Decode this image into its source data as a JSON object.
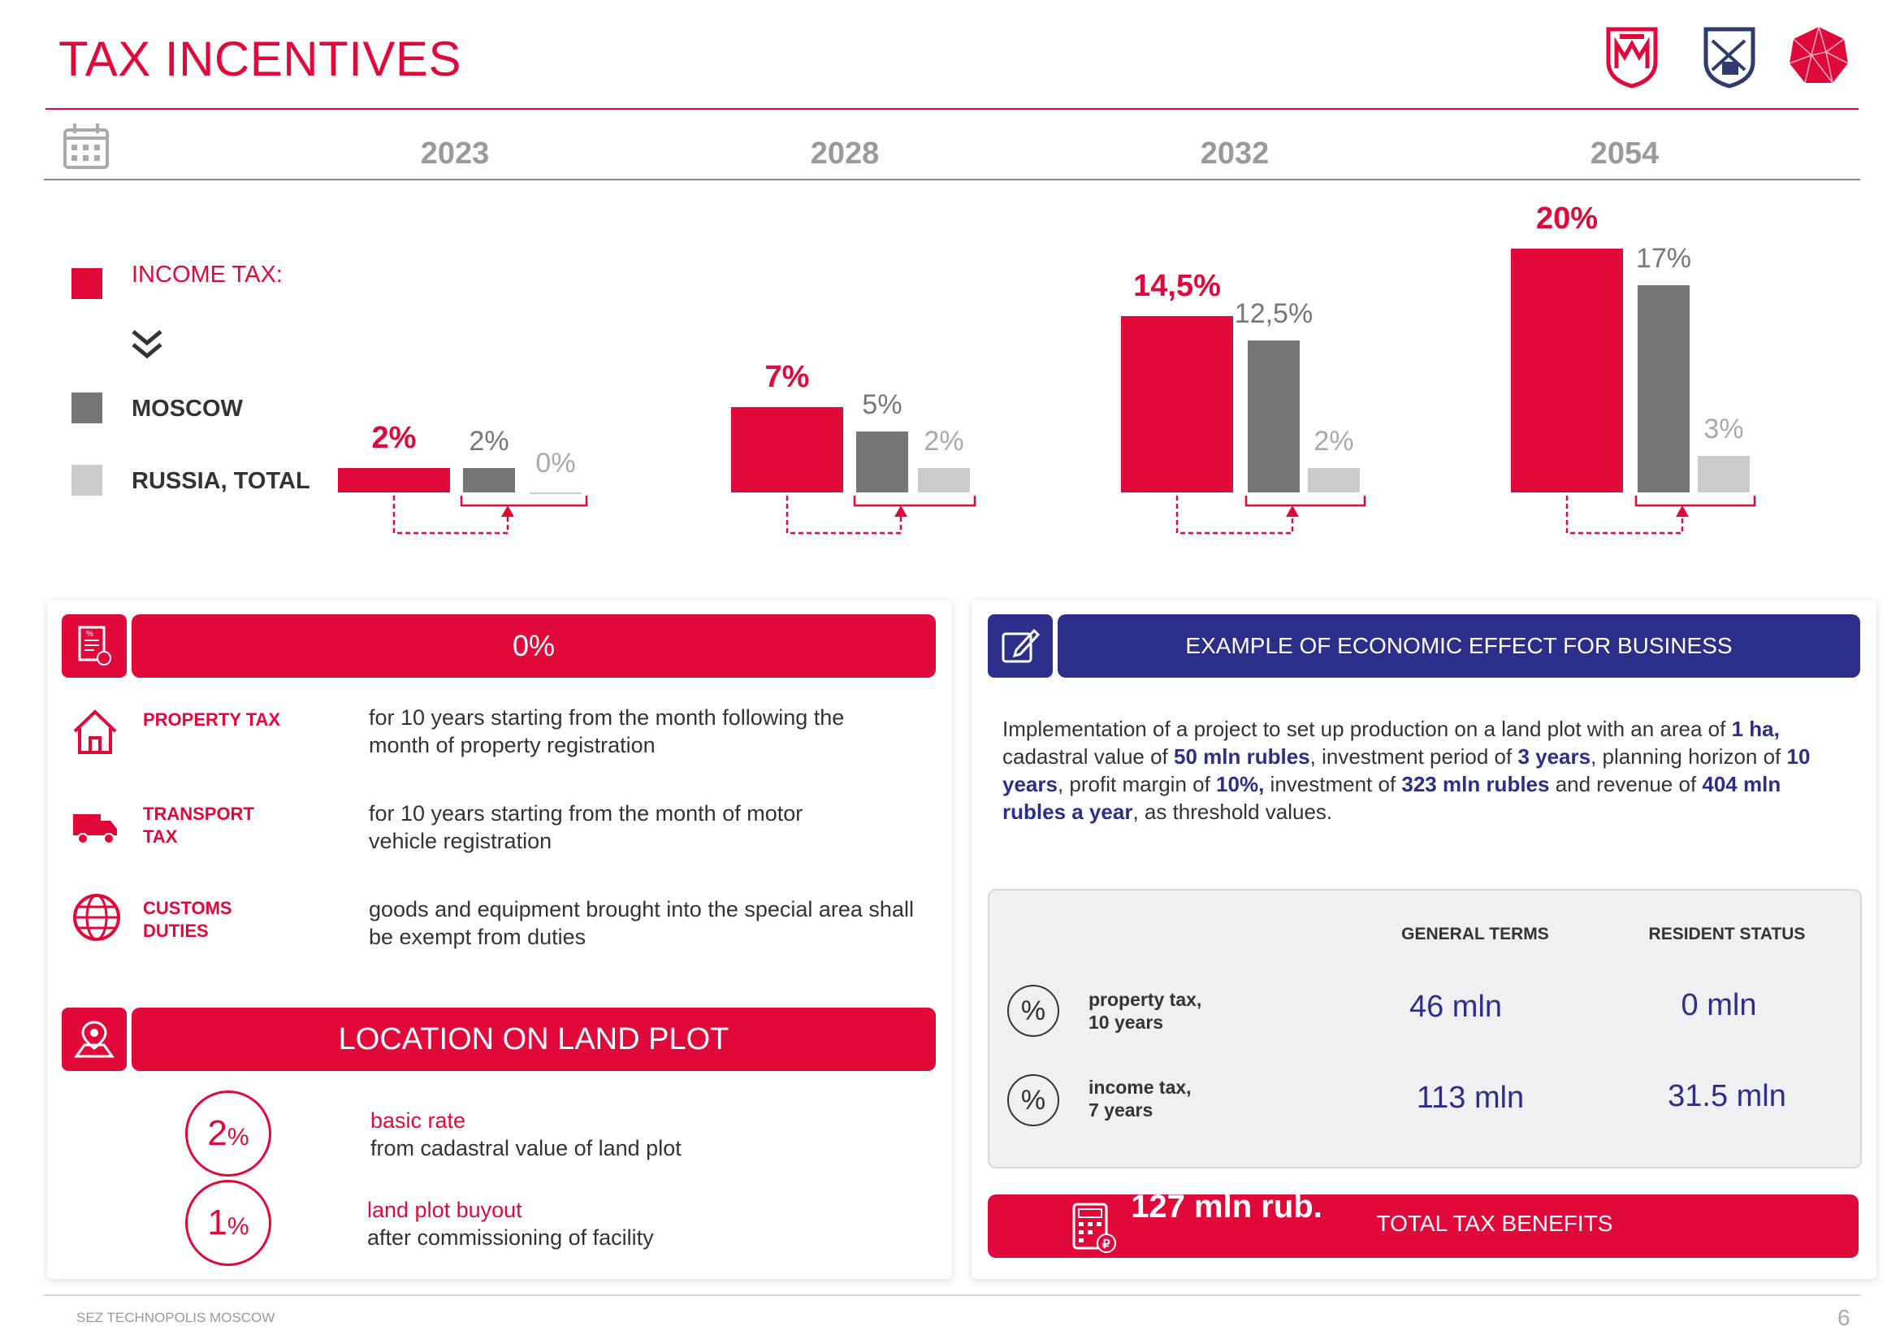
{
  "header": {
    "title": "TAX INCENTIVES",
    "logos": [
      "moscow-coat-icon",
      "technopolis-coat-icon",
      "technopolis-gem-icon"
    ]
  },
  "colors": {
    "accent": "#e0093a",
    "moscow": "#777777",
    "russia": "#cccccc",
    "blue": "#2b2f8a"
  },
  "timeline": {
    "icon": "calendar-icon",
    "years": [
      "2023",
      "2028",
      "2032",
      "2054"
    ]
  },
  "legend": {
    "income_tax": "INCOME TAX:",
    "moscow": "MOSCOW",
    "russia": "RUSSIA, TOTAL"
  },
  "chart_data": {
    "type": "bar",
    "categories": [
      "2023",
      "2028",
      "2032",
      "2054"
    ],
    "series": [
      {
        "name": "INCOME TAX:",
        "values": [
          2,
          7,
          14.5,
          20
        ],
        "labels": [
          "2%",
          "7%",
          "14,5%",
          "20%"
        ]
      },
      {
        "name": "MOSCOW",
        "values": [
          2,
          5,
          12.5,
          17
        ],
        "labels": [
          "2%",
          "5%",
          "12,5%",
          "17%"
        ]
      },
      {
        "name": "RUSSIA, TOTAL",
        "values": [
          0,
          2,
          2,
          3
        ],
        "labels": [
          "0%",
          "2%",
          "2%",
          "3%"
        ]
      }
    ]
  },
  "left_card": {
    "header_value": "0%",
    "header_icon": "tax-document-icon",
    "items": [
      {
        "icon": "house-icon",
        "name": "PROPERTY TAX",
        "desc": "for 10 years starting from the month following the month of property registration"
      },
      {
        "icon": "truck-icon",
        "name": "TRANSPORT TAX",
        "desc": "for 10 years starting from the month of motor vehicle registration"
      },
      {
        "icon": "globe-icon",
        "name": "CUSTOMS DUTIES",
        "desc": "goods and equipment brought into the special area shall be exempt from duties"
      }
    ],
    "location": {
      "header": "LOCATION ON LAND PLOT",
      "icon": "map-pin-icon",
      "rates": [
        {
          "num": "2",
          "unit": "%",
          "title": "basic rate",
          "desc": "from cadastral value of land plot"
        },
        {
          "num": "1",
          "unit": "%",
          "title": "land plot buyout",
          "desc": "after commissioning of facility"
        }
      ]
    }
  },
  "right_card": {
    "header": "EXAMPLE OF ECONOMIC EFFECT FOR BUSINESS",
    "header_icon": "edit-icon",
    "text_parts": [
      {
        "t": "Implementation of a project to set up production on a land plot with an area of ",
        "b": false
      },
      {
        "t": "1 ha,",
        "b": true
      },
      {
        "t": " cadastral value of ",
        "b": false
      },
      {
        "t": "50 mln rubles",
        "b": true
      },
      {
        "t": ", investment period of ",
        "b": false
      },
      {
        "t": "3 years",
        "b": true
      },
      {
        "t": ", planning horizon of ",
        "b": false
      },
      {
        "t": "10 years",
        "b": true
      },
      {
        "t": ", profit margin of ",
        "b": false
      },
      {
        "t": "10%,",
        "b": true
      },
      {
        "t": " investment of ",
        "b": false
      },
      {
        "t": "323 mln rubles",
        "b": true
      },
      {
        "t": " and revenue of ",
        "b": false
      },
      {
        "t": "404 mln rubles a year",
        "b": true
      },
      {
        "t": ", as threshold values.",
        "b": false
      }
    ],
    "table": {
      "col_general": "GENERAL TERMS",
      "col_resident": "RESIDENT STATUS",
      "rows": [
        {
          "icon": "percent-icon",
          "label1": "property tax,",
          "label2": "10 years",
          "general": "46 mln",
          "resident": "0 mln"
        },
        {
          "icon": "percent-icon",
          "label1": "income tax,",
          "label2": "7 years",
          "general": "113 mln",
          "resident": "31.5 mln"
        }
      ]
    },
    "total": {
      "icon": "calculator-ruble-icon",
      "value": "127 mln rub.",
      "label": "TOTAL TAX BENEFITS"
    }
  },
  "footer": {
    "text": "SEZ TECHNOPOLIS MOSCOW",
    "page": "6"
  }
}
